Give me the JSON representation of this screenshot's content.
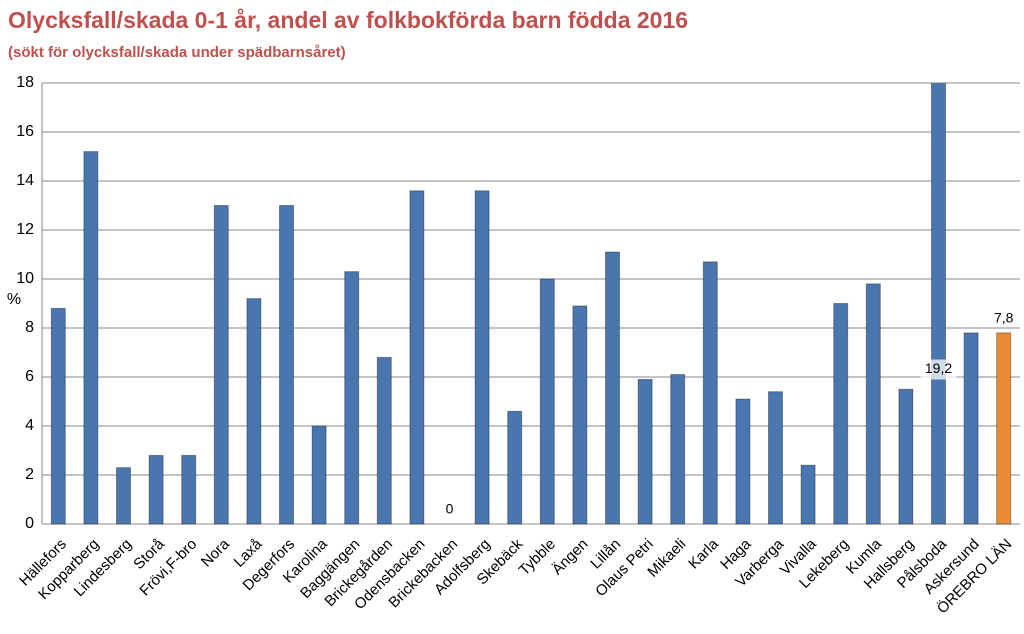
{
  "chart_data": {
    "type": "bar",
    "title": "Olycksfall/skada 0-1 år, andel av folkbokförda barn födda 2016",
    "subtitle": "(sökt för olycksfall/skada under spädbarnsåret)",
    "y_label": "%",
    "categories": [
      "Hällefors",
      "Kopparberg",
      "Lindesberg",
      "Storå",
      "Frövi,F-bro",
      "Nora",
      "Laxå",
      "Degerfors",
      "Karolina",
      "Baggängen",
      "Brickegården",
      "Odensbacken",
      "Brickebacken",
      "Adolfsberg",
      "Skebäck",
      "Tybble",
      "Ängen",
      "Lillån",
      "Olaus Petri",
      "Mikaeli",
      "Karla",
      "Haga",
      "Varberga",
      "Vivalla",
      "Lekeberg",
      "Kumla",
      "Hallsberg",
      "Pålsboda",
      "Askersund",
      "ÖREBRO LÄN"
    ],
    "values": [
      8.8,
      15.2,
      2.3,
      2.8,
      2.8,
      13.0,
      9.2,
      13.0,
      4.0,
      10.3,
      6.8,
      13.6,
      0,
      13.6,
      4.6,
      10.0,
      8.9,
      11.1,
      5.9,
      6.1,
      10.7,
      5.1,
      5.4,
      2.4,
      9.0,
      9.8,
      5.5,
      19.2,
      7.8,
      7.8
    ],
    "value_labels": [
      null,
      null,
      null,
      null,
      null,
      null,
      null,
      null,
      null,
      null,
      null,
      null,
      "0",
      null,
      null,
      null,
      null,
      null,
      null,
      null,
      null,
      null,
      null,
      null,
      null,
      null,
      null,
      "19,2",
      null,
      "7,8"
    ],
    "colors": [
      "#4a76b0",
      "#4a76b0",
      "#4a76b0",
      "#4a76b0",
      "#4a76b0",
      "#4a76b0",
      "#4a76b0",
      "#4a76b0",
      "#4a76b0",
      "#4a76b0",
      "#4a76b0",
      "#4a76b0",
      "#4a76b0",
      "#4a76b0",
      "#4a76b0",
      "#4a76b0",
      "#4a76b0",
      "#4a76b0",
      "#4a76b0",
      "#4a76b0",
      "#4a76b0",
      "#4a76b0",
      "#4a76b0",
      "#4a76b0",
      "#4a76b0",
      "#4a76b0",
      "#4a76b0",
      "#4a76b0",
      "#4a76b0",
      "#e98b35"
    ],
    "ylim": [
      0,
      18
    ],
    "yticks": [
      0,
      2,
      4,
      6,
      8,
      10,
      12,
      14,
      16,
      18
    ],
    "grid": true
  }
}
